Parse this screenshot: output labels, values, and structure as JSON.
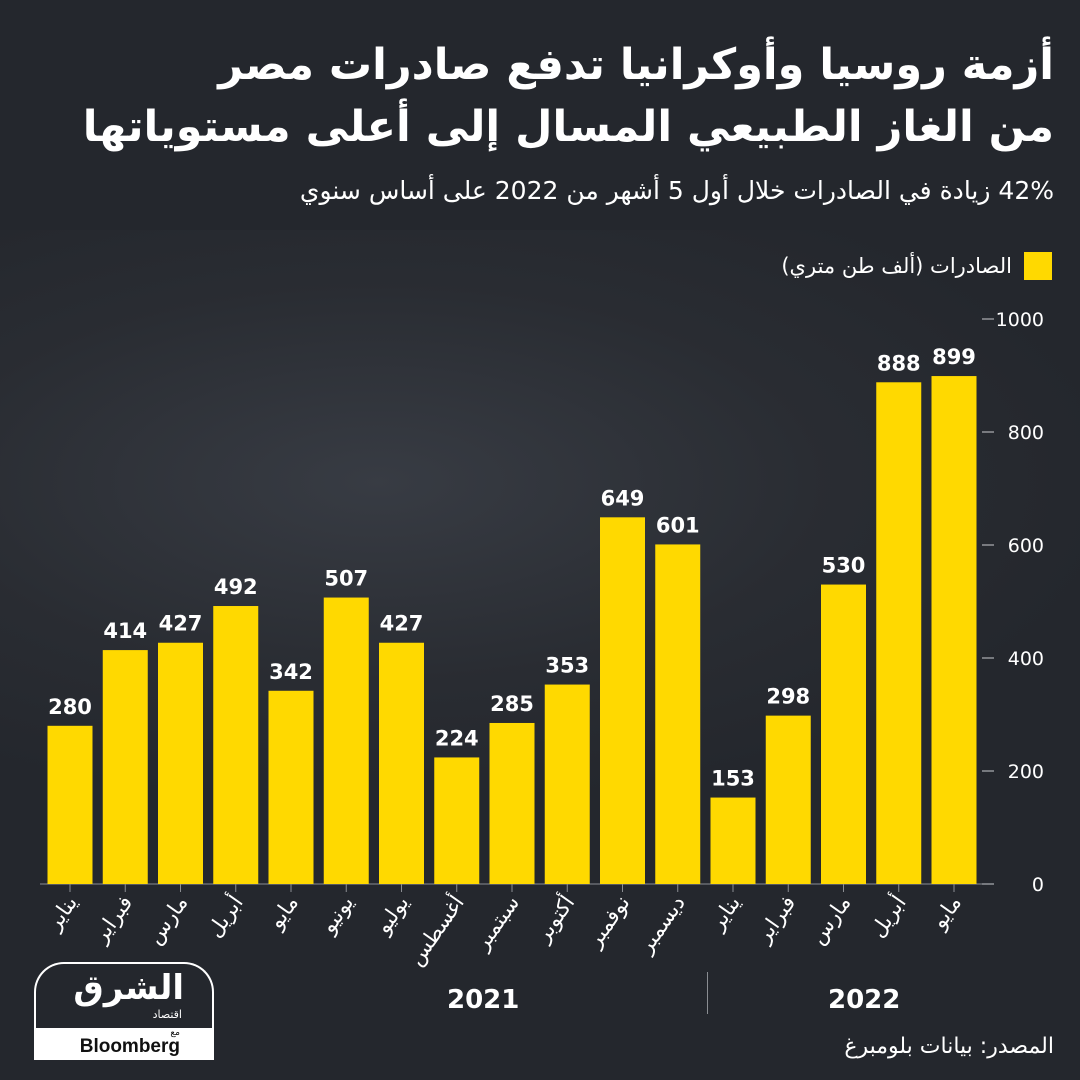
{
  "header": {
    "title_line1": "أزمة روسيا وأوكرانيا تدفع صادرات مصر",
    "title_line2": "من الغاز الطبيعي المسال إلى أعلى مستوياتها",
    "subtitle": "42% زيادة في الصادرات خلال أول 5 أشهر من 2022 على أساس سنوي"
  },
  "legend": {
    "label": "الصادرات (ألف طن متري)",
    "color": "#ffd900"
  },
  "years": {
    "left": "2021",
    "right": "2022"
  },
  "source": "المصدر: بيانات بلومبرغ",
  "logo": {
    "main": "الشرق",
    "sub": "اقتصاد",
    "with": "مع",
    "partner": "Bloomberg"
  },
  "chart_data": {
    "type": "bar",
    "categories": [
      "يناير",
      "فبراير",
      "مارس",
      "أبريل",
      "مايو",
      "يونيو",
      "يوليو",
      "أغسطس",
      "سبتمبر",
      "أكتوبر",
      "نوفمبر",
      "ديسمبر",
      "يناير",
      "فبراير",
      "مارس",
      "أبريل",
      "مايو"
    ],
    "groups": [
      "2021",
      "2021",
      "2021",
      "2021",
      "2021",
      "2021",
      "2021",
      "2021",
      "2021",
      "2021",
      "2021",
      "2021",
      "2022",
      "2022",
      "2022",
      "2022",
      "2022"
    ],
    "values": [
      280,
      414,
      427,
      492,
      342,
      507,
      427,
      224,
      285,
      353,
      649,
      601,
      153,
      298,
      530,
      888,
      899
    ],
    "ylim": [
      0,
      1000
    ],
    "yticks": [
      "0",
      "200",
      "400",
      "600",
      "800",
      "1000"
    ],
    "y_axis_side": "right",
    "bar_color": "#ffd900",
    "grid": false,
    "legend_position": "top-right"
  }
}
